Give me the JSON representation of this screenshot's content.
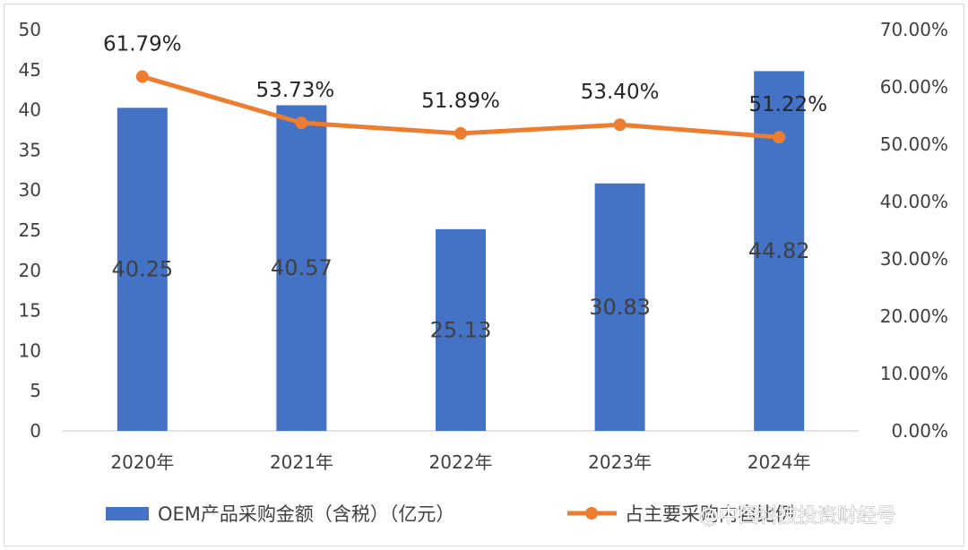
{
  "chart_data": {
    "type": "bar",
    "categories": [
      "2020年",
      "2021年",
      "2022年",
      "2023年",
      "2024年"
    ],
    "series": [
      {
        "name": "OEM产品采购金额（含税）（亿元）",
        "type": "bar",
        "axis": "left",
        "values": [
          40.25,
          40.57,
          25.13,
          30.83,
          44.82
        ],
        "labels": [
          "40.25",
          "40.57",
          "25.13",
          "30.83",
          "44.82"
        ],
        "color": "#4472C4"
      },
      {
        "name": "占主要采购内容比例",
        "type": "line",
        "axis": "right",
        "values": [
          61.79,
          53.73,
          51.89,
          53.4,
          51.22
        ],
        "labels": [
          "61.79%",
          "53.73%",
          "51.89%",
          "53.40%",
          "51.22%"
        ],
        "color": "#ED7D31"
      }
    ],
    "y_left": {
      "ylim": [
        0,
        50
      ],
      "ticks": [
        "0",
        "5",
        "10",
        "15",
        "20",
        "25",
        "30",
        "35",
        "40",
        "45",
        "50"
      ]
    },
    "y_right": {
      "ylim": [
        0,
        70
      ],
      "ticks": [
        "0.00%",
        "10.00%",
        "20.00%",
        "30.00%",
        "40.00%",
        "50.00%",
        "60.00%",
        "70.00%"
      ]
    },
    "grid": false,
    "legend": "bottom"
  },
  "watermark": "@中国科技投资财经号"
}
